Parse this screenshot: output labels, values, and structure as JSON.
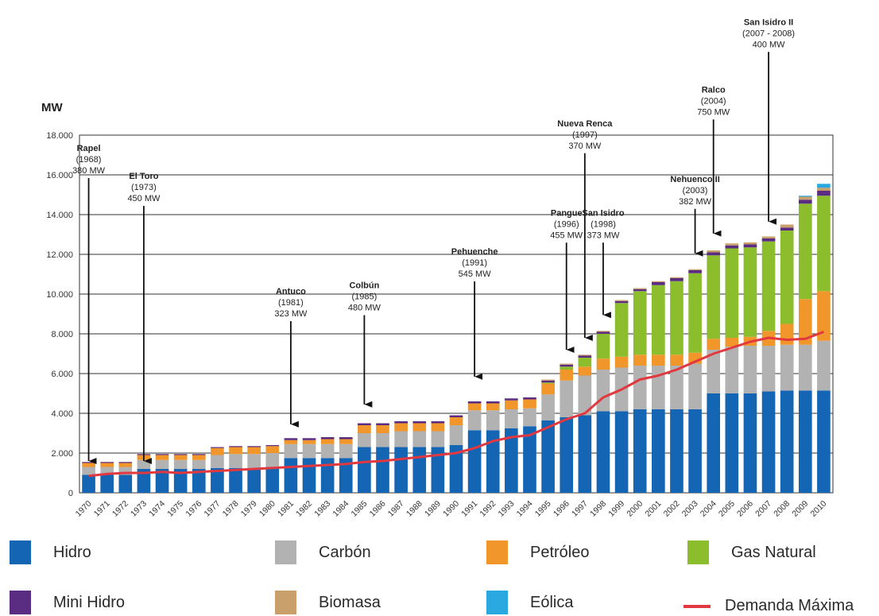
{
  "chart_data": {
    "type": "bar",
    "ylabel": "MW",
    "ylim": [
      0,
      18000
    ],
    "yticks": [
      "0",
      "2.000",
      "4.000",
      "6.000",
      "8.000",
      "10.000",
      "12.000",
      "14.000",
      "16.000",
      "18.000"
    ],
    "grid": true,
    "legend_position": "bottom",
    "categories": [
      "1970",
      "1971",
      "1972",
      "1973",
      "1974",
      "1975",
      "1976",
      "1977",
      "1978",
      "1979",
      "1980",
      "1981",
      "1982",
      "1983",
      "1984",
      "1985",
      "1986",
      "1987",
      "1988",
      "1989",
      "1990",
      "1991",
      "1992",
      "1993",
      "1994",
      "1995",
      "1996",
      "1997",
      "1998",
      "1999",
      "2000",
      "2001",
      "2002",
      "2003",
      "2004",
      "2005",
      "2006",
      "2007",
      "2008",
      "2009",
      "2010"
    ],
    "series": [
      {
        "name": "Hidro",
        "color": "#1565b5",
        "values": [
          900,
          900,
          900,
          1200,
          1200,
          1200,
          1200,
          1250,
          1250,
          1250,
          1300,
          1750,
          1750,
          1750,
          1750,
          2300,
          2300,
          2300,
          2300,
          2300,
          2400,
          3150,
          3150,
          3250,
          3350,
          3650,
          3800,
          3900,
          4100,
          4100,
          4200,
          4200,
          4200,
          4200,
          5000,
          5000,
          5000,
          5100,
          5150,
          5150,
          5150
        ]
      },
      {
        "name": "Carbón",
        "color": "#b2b2b2",
        "values": [
          400,
          400,
          400,
          450,
          450,
          450,
          450,
          650,
          700,
          700,
          700,
          700,
          700,
          700,
          700,
          700,
          700,
          800,
          800,
          800,
          1000,
          1000,
          1000,
          950,
          900,
          1300,
          1850,
          2000,
          2100,
          2200,
          2200,
          2200,
          2200,
          2300,
          2200,
          2350,
          2400,
          2300,
          2300,
          2300,
          2500
        ]
      },
      {
        "name": "Petróleo",
        "color": "#f0962a",
        "values": [
          200,
          200,
          200,
          250,
          250,
          250,
          250,
          350,
          350,
          350,
          350,
          200,
          200,
          250,
          250,
          400,
          400,
          400,
          400,
          400,
          400,
          350,
          350,
          450,
          450,
          550,
          550,
          450,
          550,
          550,
          550,
          550,
          550,
          550,
          550,
          450,
          450,
          750,
          1050,
          2300,
          2500
        ]
      },
      {
        "name": "Gas Natural",
        "color": "#8bbd2c",
        "values": [
          0,
          0,
          0,
          0,
          0,
          0,
          0,
          0,
          0,
          0,
          0,
          0,
          0,
          0,
          0,
          0,
          0,
          0,
          0,
          0,
          0,
          0,
          0,
          0,
          0,
          50,
          150,
          450,
          1250,
          2700,
          3200,
          3500,
          3700,
          4000,
          4200,
          4500,
          4500,
          4500,
          4700,
          4800,
          4800
        ]
      },
      {
        "name": "Mini Hidro",
        "color": "#5b2d82",
        "values": [
          50,
          50,
          50,
          50,
          50,
          50,
          50,
          50,
          50,
          50,
          50,
          100,
          100,
          100,
          100,
          100,
          100,
          100,
          100,
          100,
          100,
          100,
          100,
          100,
          100,
          100,
          100,
          100,
          100,
          100,
          100,
          150,
          150,
          150,
          150,
          150,
          150,
          150,
          150,
          200,
          250
        ]
      },
      {
        "name": "Biomasa",
        "color": "#c9a06b",
        "values": [
          0,
          0,
          0,
          0,
          0,
          0,
          0,
          0,
          0,
          0,
          0,
          0,
          0,
          0,
          0,
          0,
          0,
          0,
          0,
          0,
          0,
          0,
          0,
          0,
          0,
          50,
          50,
          50,
          50,
          50,
          50,
          50,
          50,
          50,
          100,
          100,
          100,
          100,
          150,
          150,
          150
        ]
      },
      {
        "name": "Eólica",
        "color": "#29a9e0",
        "values": [
          0,
          0,
          0,
          0,
          0,
          0,
          0,
          0,
          0,
          0,
          0,
          0,
          0,
          0,
          0,
          0,
          0,
          0,
          0,
          0,
          0,
          0,
          0,
          0,
          0,
          0,
          0,
          0,
          0,
          0,
          0,
          0,
          0,
          0,
          0,
          0,
          0,
          0,
          0,
          50,
          200
        ]
      }
    ],
    "line": {
      "name": "Demanda Máxima",
      "color": "#e2383f",
      "values": [
        850,
        950,
        1000,
        1000,
        1050,
        1000,
        1050,
        1100,
        1150,
        1200,
        1250,
        1300,
        1350,
        1400,
        1450,
        1550,
        1600,
        1700,
        1800,
        1900,
        2000,
        2250,
        2600,
        2800,
        2900,
        3300,
        3700,
        4000,
        4800,
        5200,
        5700,
        5900,
        6200,
        6600,
        7000,
        7300,
        7600,
        7800,
        7700,
        7750,
        8100
      ]
    },
    "annotations": [
      {
        "index": 0,
        "target": 1600,
        "text_top": 17200,
        "lines": [
          "Rapel",
          "(1968)",
          "380 MW"
        ]
      },
      {
        "index": 3,
        "target": 1600,
        "text_top": 15800,
        "lines": [
          "El Toro",
          "(1973)",
          "450 MW"
        ]
      },
      {
        "index": 11,
        "target": 3450,
        "text_top": 10000,
        "lines": [
          "Antuco",
          "(1981)",
          "323 MW"
        ]
      },
      {
        "index": 15,
        "target": 4450,
        "text_top": 10300,
        "lines": [
          "Colbún",
          "(1985)",
          "480 MW"
        ]
      },
      {
        "index": 21,
        "target": 5850,
        "text_top": 12000,
        "lines": [
          "Pehuenche",
          "(1991)",
          "545 MW"
        ]
      },
      {
        "index": 26,
        "target": 7200,
        "text_top": 13950,
        "lines": [
          "Pangue",
          "(1996)",
          "455 MW"
        ]
      },
      {
        "index": 27,
        "target": 7800,
        "text_top": 18450,
        "lines": [
          "Nueva Renca",
          "(1997)",
          "370 MW"
        ]
      },
      {
        "index": 28,
        "target": 8950,
        "text_top": 13950,
        "lines": [
          "San Isidro",
          "(1998)",
          "373 MW"
        ]
      },
      {
        "index": 33,
        "target": 12050,
        "text_top": 15650,
        "lines": [
          "Nehuenco II",
          "(2003)",
          "382 MW"
        ]
      },
      {
        "index": 34,
        "target": 13050,
        "text_top": 20150,
        "lines": [
          "Ralco",
          "(2004)",
          "750 MW"
        ]
      },
      {
        "index": 37,
        "target": 13650,
        "text_top": 23550,
        "lines": [
          "San Isidro II",
          "(2007 - 2008)",
          "400 MW"
        ]
      }
    ]
  },
  "legend": {
    "hidro": "Hidro",
    "carbon": "Carbón",
    "petroleo": "Petróleo",
    "gas_natural": "Gas Natural",
    "mini_hidro": "Mini Hidro",
    "biomasa": "Biomasa",
    "eolica": "Eólica",
    "demanda_maxima": "Demanda Máxima"
  },
  "colors": {
    "hidro": "#1565b5",
    "carbon": "#b2b2b2",
    "petroleo": "#f0962a",
    "gas_natural": "#8bbd2c",
    "mini_hidro": "#5b2d82",
    "biomasa": "#c9a06b",
    "eolica": "#29a9e0",
    "demanda": "#e2383f"
  }
}
